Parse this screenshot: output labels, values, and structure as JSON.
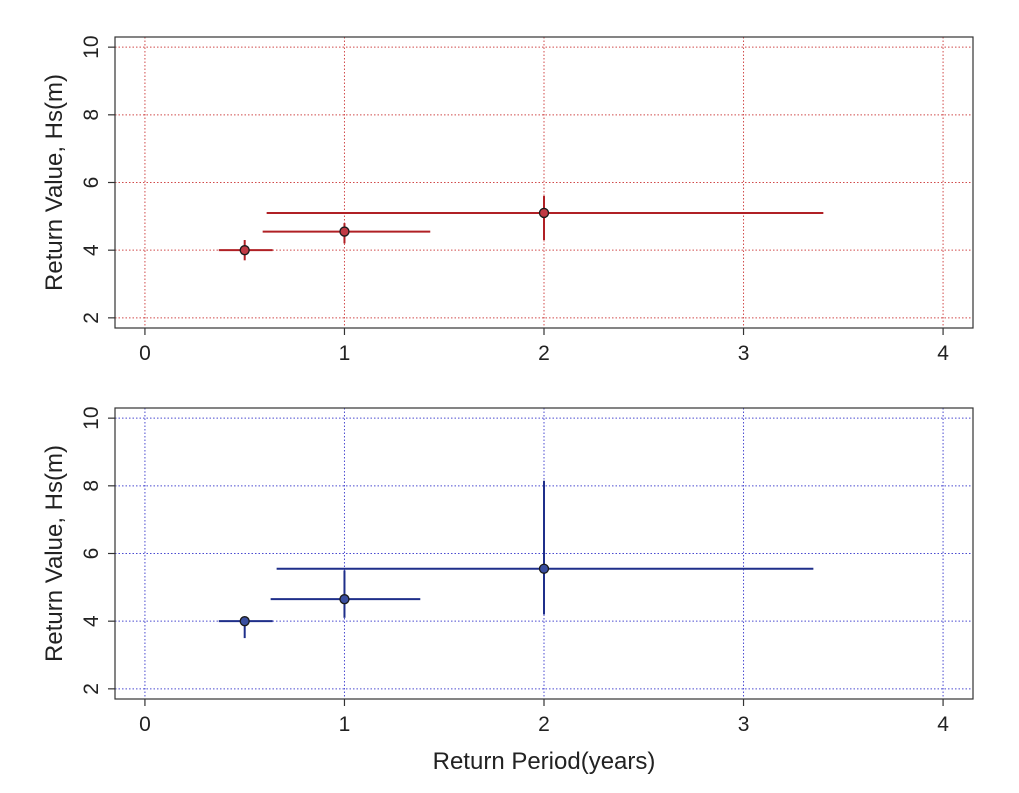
{
  "chart_data": [
    {
      "type": "scatter",
      "ylabel": "Return Value, Hs(m)",
      "xlabel": "",
      "xlim": [
        -0.15,
        4.15
      ],
      "ylim": [
        1.7,
        10.3
      ],
      "x_ticks": [
        "0",
        "1",
        "2",
        "3",
        "4"
      ],
      "y_ticks": [
        "2",
        "4",
        "6",
        "8",
        "10"
      ],
      "grid": true,
      "grid_color": "#d04a4a",
      "series_color": "#b02025",
      "point_fill": "#c03a44",
      "points": [
        {
          "x": 0.5,
          "y": 4.0,
          "x_low": 0.37,
          "x_high": 0.64,
          "y_low": 3.7,
          "y_high": 4.3
        },
        {
          "x": 1.0,
          "y": 4.55,
          "x_low": 0.59,
          "x_high": 1.43,
          "y_low": 4.2,
          "y_high": 4.8
        },
        {
          "x": 2.0,
          "y": 5.1,
          "x_low": 0.61,
          "x_high": 3.4,
          "y_low": 4.3,
          "y_high": 5.6
        }
      ]
    },
    {
      "type": "scatter",
      "ylabel": "Return Value, Hs(m)",
      "xlabel": "Return Period(years)",
      "xlim": [
        -0.15,
        4.15
      ],
      "ylim": [
        1.7,
        10.3
      ],
      "x_ticks": [
        "0",
        "1",
        "2",
        "3",
        "4"
      ],
      "y_ticks": [
        "2",
        "4",
        "6",
        "8",
        "10"
      ],
      "grid": true,
      "grid_color": "#4a4ad0",
      "series_color": "#1f2f8a",
      "point_fill": "#3a4fa0",
      "points": [
        {
          "x": 0.5,
          "y": 4.0,
          "x_low": 0.37,
          "x_high": 0.64,
          "y_low": 3.5,
          "y_high": 4.1
        },
        {
          "x": 1.0,
          "y": 4.65,
          "x_low": 0.63,
          "x_high": 1.38,
          "y_low": 4.1,
          "y_high": 5.5
        },
        {
          "x": 2.0,
          "y": 5.55,
          "x_low": 0.66,
          "x_high": 3.35,
          "y_low": 4.2,
          "y_high": 8.15
        }
      ]
    }
  ]
}
